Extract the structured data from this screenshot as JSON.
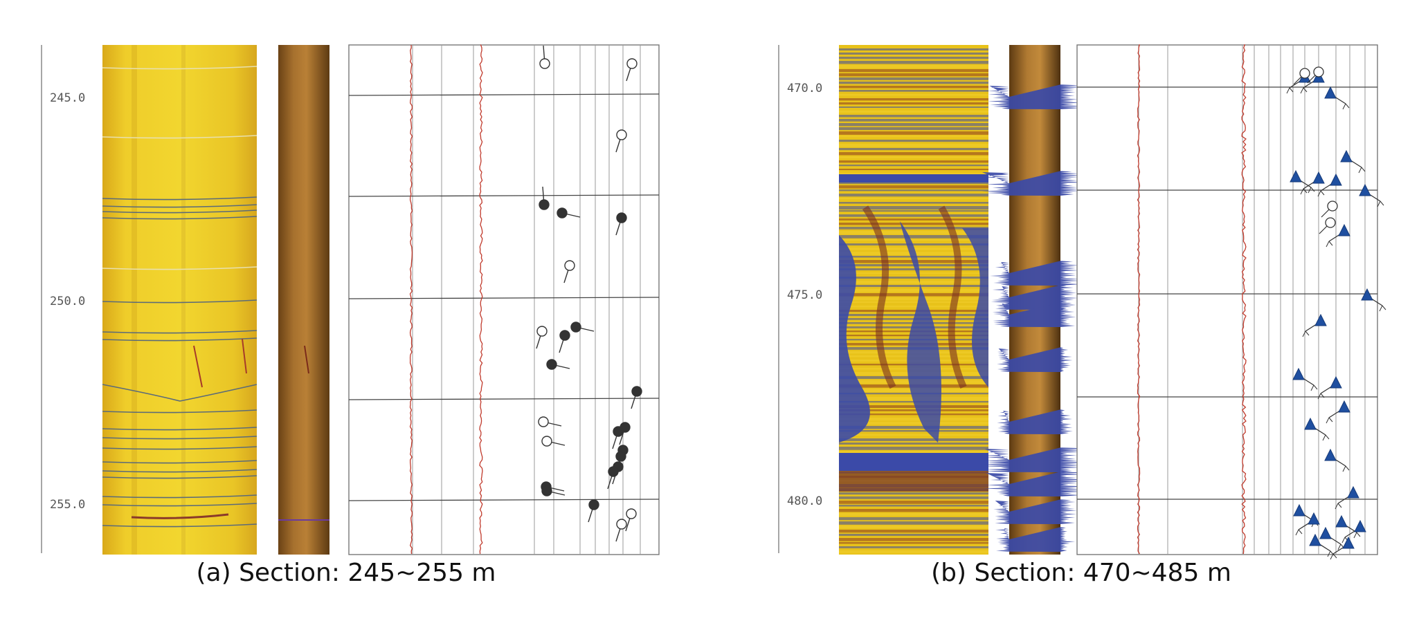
{
  "panels": [
    {
      "caption": "(a) Section: 245~255 m",
      "depth_labels": [
        "245.0",
        "250.0",
        "255.0"
      ],
      "depth_range_m": [
        245,
        255
      ],
      "image_log_style": "amplitude (yellow)",
      "point_style": "circle tadpoles (open and filled)"
    },
    {
      "caption": "(b) Section: 470~485 m",
      "depth_labels": [
        "470.0",
        "475.0",
        "480.0"
      ],
      "depth_range_m": [
        470,
        485
      ],
      "image_log_style": "amplitude (yellow / blue / brown)",
      "point_style": "triangle tadpoles (blue)"
    }
  ],
  "colors": {
    "yellow_image": "#e8c21a",
    "core_brown": "#8b5a22",
    "trace_red": "#c0392b",
    "tadpole_dark": "#333333",
    "tadpole_blue": "#1f4fa0",
    "fracture_blue": "#3b4aa8"
  }
}
